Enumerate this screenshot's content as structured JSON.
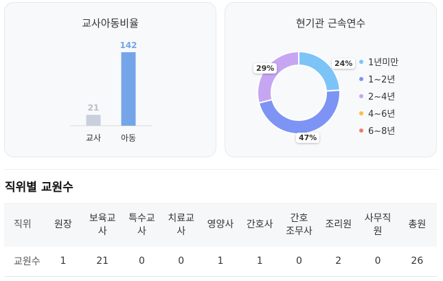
{
  "ratio_card": {
    "title": "교사아동비율"
  },
  "tenure_card": {
    "title": "현기관 근속연수"
  },
  "chart_data": [
    {
      "type": "bar",
      "title": "교사아동비율",
      "categories": [
        "교사",
        "아동"
      ],
      "values": [
        21,
        142
      ],
      "colors": [
        "#c9cfdc",
        "#74a5e8"
      ],
      "value_colors": [
        "#b8bec9",
        "#74a5e8"
      ]
    },
    {
      "type": "pie",
      "title": "현기관 근속연수",
      "donut": true,
      "categories": [
        "1년미만",
        "1~2년",
        "2~4년",
        "4~6년",
        "6~8년"
      ],
      "values": [
        24,
        47,
        29,
        0,
        0
      ],
      "labels": [
        "24%",
        "47%",
        "29%"
      ],
      "colors": [
        "#7cc4f8",
        "#7d94f5",
        "#c6a6f2",
        "#f3c143",
        "#f27a6a"
      ],
      "legend_position": "right"
    }
  ],
  "section": {
    "title": "직위별 교원수"
  },
  "staff_table": {
    "headers": [
      "직위",
      "원장",
      "보육교\n사",
      "특수교\n사",
      "치료교\n사",
      "영양사",
      "간호사",
      "간호\n조무사",
      "조리원",
      "사무직\n원",
      "총원"
    ],
    "row_label": "교원수",
    "values": [
      "1",
      "21",
      "0",
      "0",
      "1",
      "1",
      "0",
      "2",
      "0",
      "26"
    ]
  }
}
